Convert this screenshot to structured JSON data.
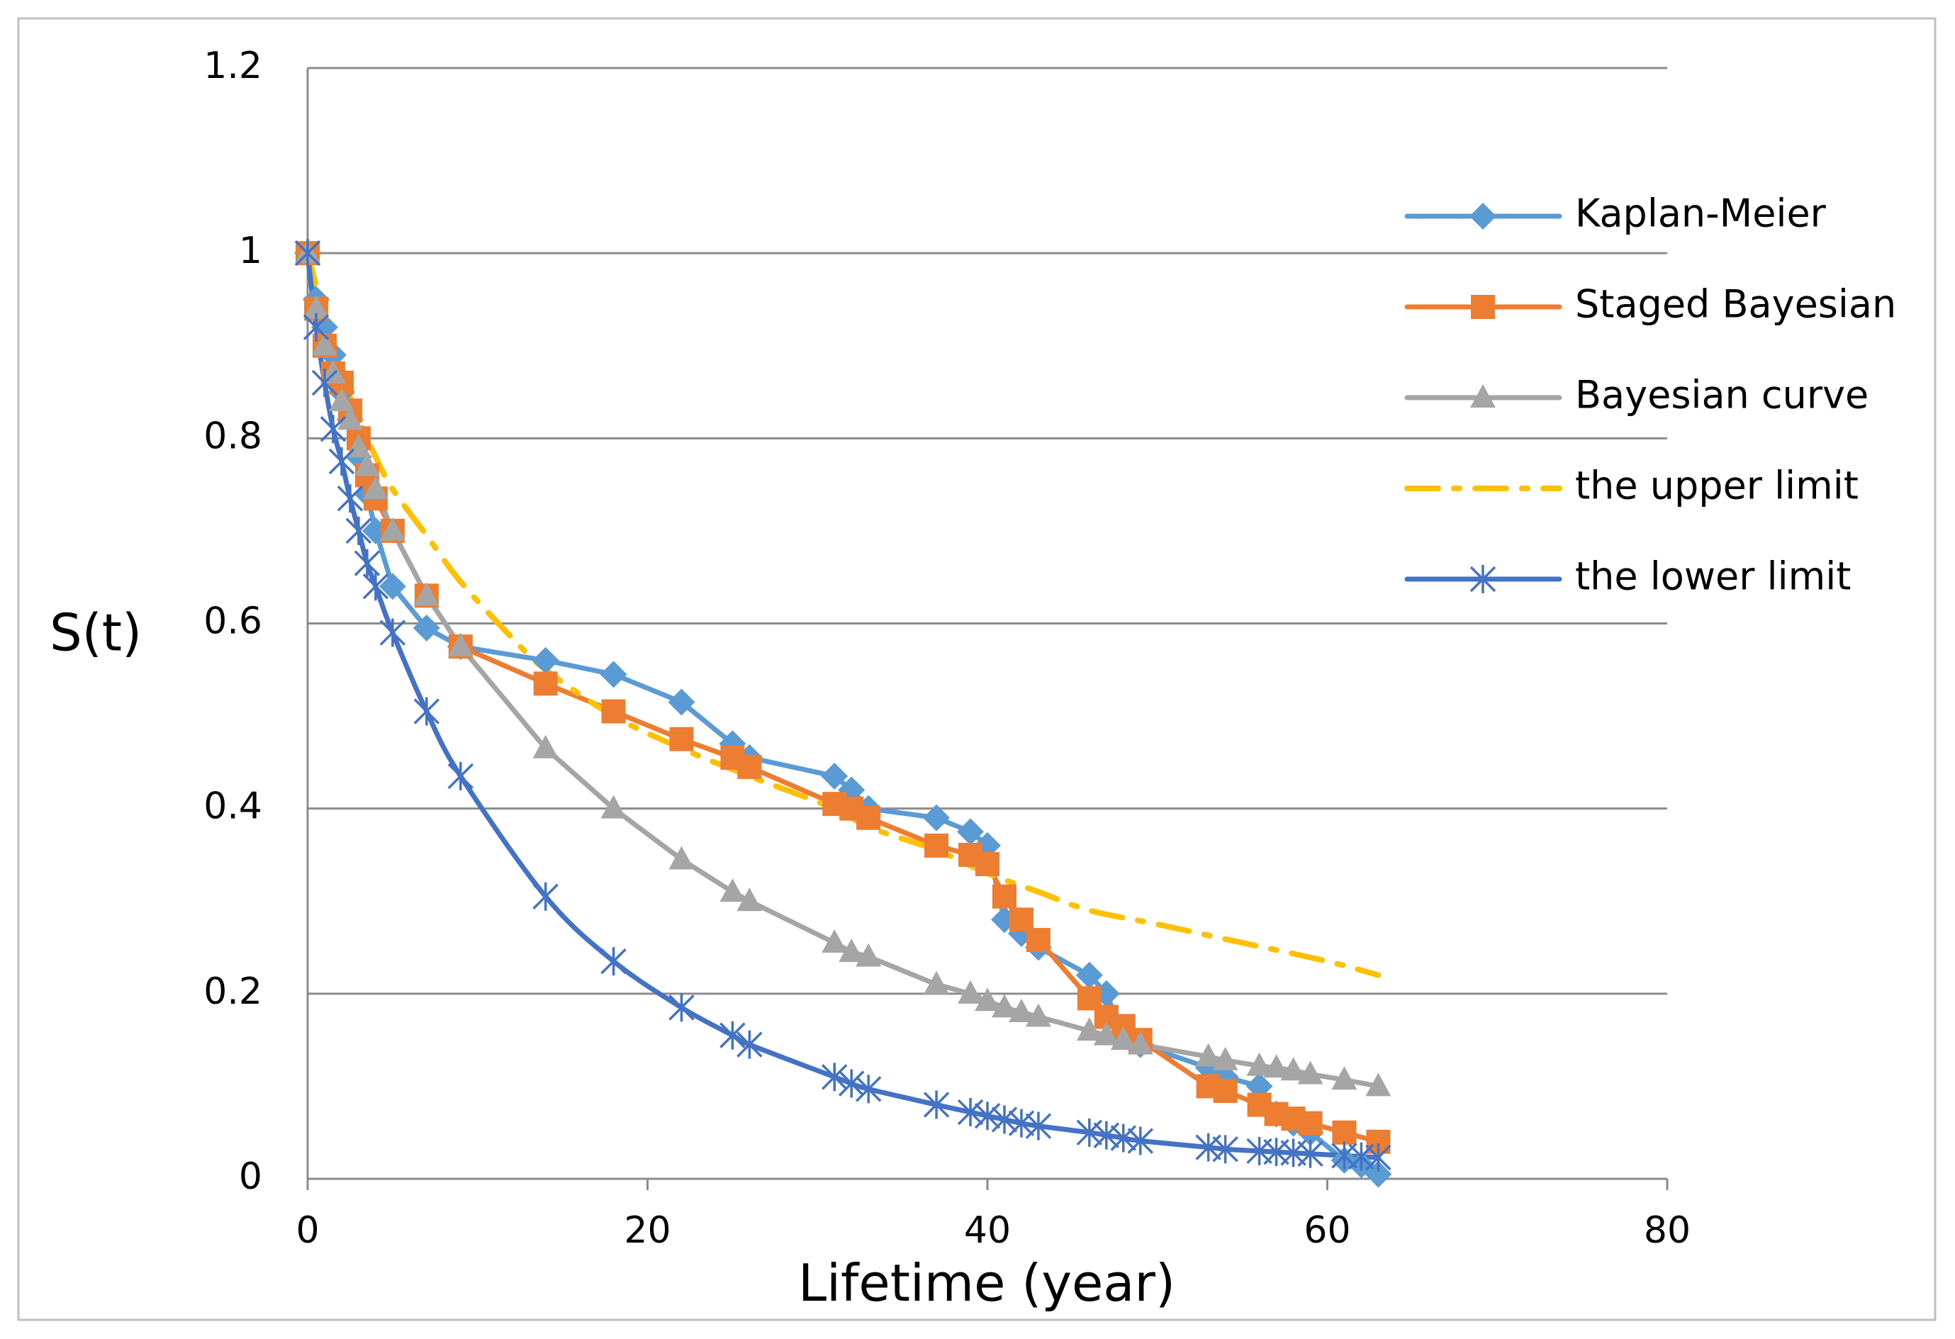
{
  "chart_data": {
    "type": "line",
    "title": "",
    "xlabel": "Lifetime (year)",
    "ylabel": "S(t)",
    "xlim": [
      0,
      80
    ],
    "ylim": [
      0,
      1.2
    ],
    "x_ticks": [
      "0",
      "20",
      "40",
      "60",
      "80"
    ],
    "y_ticks": [
      "0",
      "0.2",
      "0.4",
      "0.6",
      "0.8",
      "1",
      "1.2"
    ],
    "grid": "horizontal",
    "legend_position": "right",
    "series": [
      {
        "name": "Kaplan-Meier",
        "color": "#5B9BD5",
        "marker": "diamond",
        "line": "solid",
        "x": [
          0,
          0.5,
          1,
          1.5,
          2,
          2.5,
          3,
          3.5,
          4,
          5,
          7,
          9,
          14,
          18,
          22,
          25,
          26,
          31,
          32,
          33,
          37,
          39,
          40,
          41,
          42,
          43,
          46,
          47,
          48,
          49,
          53,
          54,
          56,
          57,
          58,
          59,
          61,
          62,
          63
        ],
        "y": [
          1,
          0.95,
          0.92,
          0.89,
          0.85,
          0.82,
          0.78,
          0.74,
          0.7,
          0.64,
          0.595,
          0.575,
          0.56,
          0.545,
          0.515,
          0.47,
          0.455,
          0.435,
          0.42,
          0.4,
          0.39,
          0.375,
          0.36,
          0.28,
          0.265,
          0.25,
          0.22,
          0.2,
          0.155,
          0.145,
          0.12,
          0.11,
          0.1,
          0.07,
          0.06,
          0.05,
          0.02,
          0.015,
          0.005
        ]
      },
      {
        "name": "Staged Bayesian",
        "color": "#ED7D31",
        "marker": "square",
        "line": "solid",
        "x": [
          0,
          0.5,
          1,
          1.5,
          2,
          2.5,
          3,
          3.5,
          4,
          5,
          7,
          9,
          14,
          18,
          22,
          25,
          26,
          31,
          32,
          33,
          37,
          39,
          40,
          41,
          42,
          43,
          46,
          47,
          48,
          49,
          53,
          54,
          56,
          57,
          58,
          59,
          61,
          63
        ],
        "y": [
          1,
          0.94,
          0.9,
          0.87,
          0.86,
          0.83,
          0.8,
          0.76,
          0.735,
          0.7,
          0.63,
          0.575,
          0.535,
          0.505,
          0.475,
          0.455,
          0.445,
          0.405,
          0.4,
          0.39,
          0.36,
          0.35,
          0.34,
          0.305,
          0.28,
          0.258,
          0.195,
          0.175,
          0.165,
          0.15,
          0.1,
          0.095,
          0.08,
          0.07,
          0.065,
          0.06,
          0.05,
          0.04
        ]
      },
      {
        "name": "Bayesian curve",
        "color": "#A5A5A5",
        "marker": "triangle",
        "line": "solid",
        "x": [
          0,
          0.5,
          1,
          1.5,
          2,
          2.5,
          3,
          3.5,
          4,
          5,
          7,
          9,
          14,
          18,
          22,
          25,
          26,
          31,
          32,
          33,
          37,
          39,
          40,
          41,
          42,
          43,
          46,
          47,
          48,
          49,
          53,
          54,
          56,
          57,
          58,
          59,
          61,
          63
        ],
        "y": [
          1,
          0.94,
          0.9,
          0.87,
          0.84,
          0.82,
          0.79,
          0.77,
          0.745,
          0.7,
          0.63,
          0.575,
          0.465,
          0.4,
          0.345,
          0.31,
          0.3,
          0.255,
          0.245,
          0.24,
          0.21,
          0.2,
          0.192,
          0.185,
          0.18,
          0.175,
          0.16,
          0.155,
          0.15,
          0.145,
          0.132,
          0.128,
          0.122,
          0.12,
          0.117,
          0.113,
          0.107,
          0.1
        ]
      },
      {
        "name": "the upper limit",
        "color": "#FFC000",
        "marker": "none",
        "line": "dashdot",
        "x": [
          0,
          1,
          2,
          3,
          4,
          5,
          7,
          9,
          12,
          14,
          18,
          22,
          26,
          31,
          33,
          37,
          40,
          43,
          46,
          50,
          55,
          60,
          63
        ],
        "y": [
          1,
          0.93,
          0.87,
          0.82,
          0.78,
          0.745,
          0.695,
          0.645,
          0.585,
          0.55,
          0.5,
          0.465,
          0.435,
          0.4,
          0.38,
          0.355,
          0.33,
          0.31,
          0.29,
          0.275,
          0.255,
          0.235,
          0.22
        ]
      },
      {
        "name": "the lower limit",
        "color": "#4472C4",
        "marker": "star",
        "line": "solid",
        "x": [
          0,
          0.5,
          1,
          1.5,
          2,
          2.5,
          3,
          3.5,
          4,
          5,
          7,
          9,
          14,
          18,
          22,
          25,
          26,
          31,
          32,
          33,
          37,
          39,
          40,
          41,
          42,
          43,
          46,
          47,
          48,
          49,
          53,
          54,
          56,
          57,
          58,
          59,
          61,
          62,
          63
        ],
        "y": [
          1,
          0.92,
          0.86,
          0.81,
          0.775,
          0.735,
          0.7,
          0.665,
          0.64,
          0.59,
          0.505,
          0.435,
          0.305,
          0.235,
          0.185,
          0.155,
          0.145,
          0.11,
          0.103,
          0.097,
          0.08,
          0.072,
          0.068,
          0.064,
          0.06,
          0.057,
          0.05,
          0.047,
          0.044,
          0.041,
          0.034,
          0.032,
          0.03,
          0.029,
          0.028,
          0.027,
          0.025,
          0.024,
          0.023
        ]
      }
    ]
  }
}
